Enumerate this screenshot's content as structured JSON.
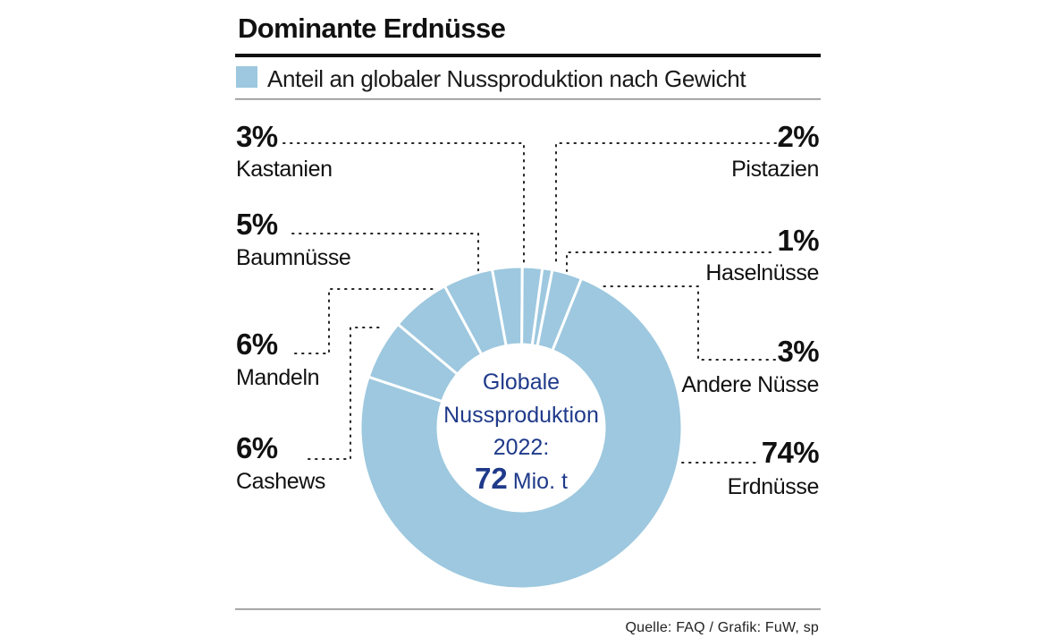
{
  "title": "Dominante Erdnüsse",
  "legend": "Anteil an globaler Nussproduktion nach Gewicht",
  "source": "Quelle: FAQ / Grafik: FuW, sp",
  "center": {
    "line1": "Globale",
    "line2": "Nussproduktion",
    "line3": "2022:",
    "value": "72",
    "unit": "Mio. t"
  },
  "colors": {
    "slice": "#9dc8df",
    "separator": "#ffffff",
    "center_text": "#1f3a8a",
    "text": "#111111"
  },
  "chart_data": {
    "type": "pie",
    "variant": "donut",
    "title": "Dominante Erdnüsse",
    "subtitle": "Anteil an globaler Nussproduktion nach Gewicht",
    "total_label": "Globale Nussproduktion 2022: 72 Mio. t",
    "unit": "%",
    "slices": [
      {
        "label": "Erdnüsse",
        "value": 74,
        "display": "74%"
      },
      {
        "label": "Cashews",
        "value": 6,
        "display": "6%"
      },
      {
        "label": "Mandeln",
        "value": 6,
        "display": "6%"
      },
      {
        "label": "Baumnüsse",
        "value": 5,
        "display": "5%"
      },
      {
        "label": "Kastanien",
        "value": 3,
        "display": "3%"
      },
      {
        "label": "Pistazien",
        "value": 2,
        "display": "2%"
      },
      {
        "label": "Haselnüsse",
        "value": 1,
        "display": "1%"
      },
      {
        "label": "Andere Nüsse",
        "value": 3,
        "display": "3%"
      }
    ]
  }
}
